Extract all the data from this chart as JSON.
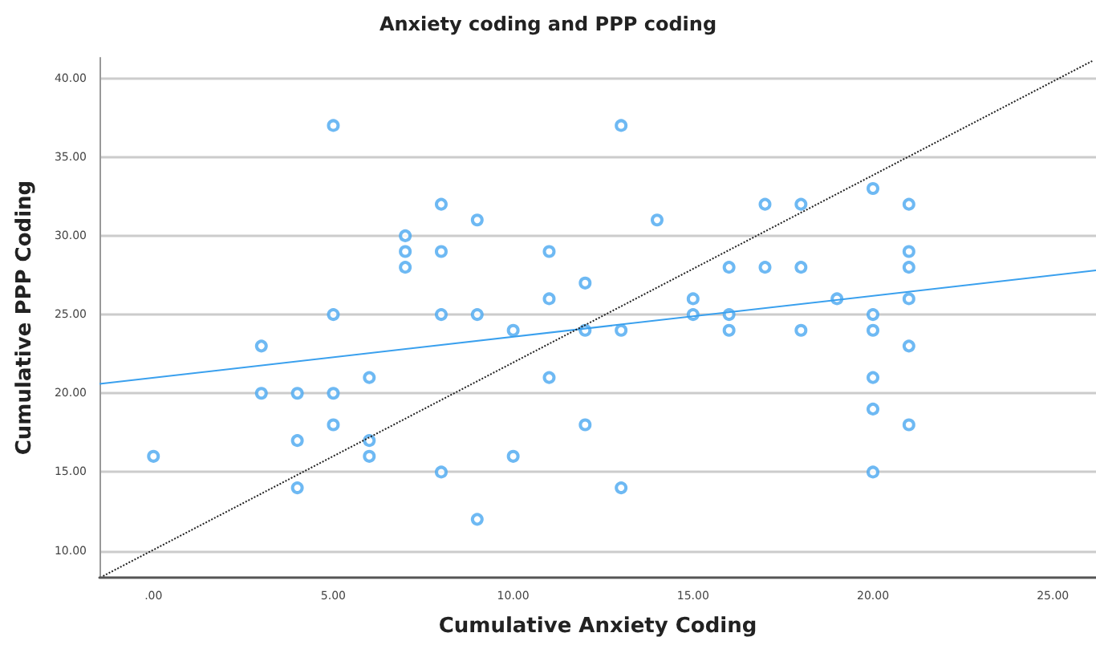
{
  "chart_data": {
    "type": "scatter",
    "title": "Anxiety coding and PPP coding",
    "xlabel": "Cumulative Anxiety Coding",
    "ylabel": "Cumulative PPP Coding",
    "xlim": [
      -1.5,
      26.2
    ],
    "ylim": [
      8.3,
      41.3
    ],
    "xticks": [
      {
        "value": 0,
        "label": ".00"
      },
      {
        "value": 5,
        "label": "5.00"
      },
      {
        "value": 10,
        "label": "10.00"
      },
      {
        "value": 15,
        "label": "15.00"
      },
      {
        "value": 20,
        "label": "20.00"
      },
      {
        "value": 25,
        "label": "25.00"
      }
    ],
    "yticks": [
      {
        "value": 10,
        "label": "10.00"
      },
      {
        "value": 15,
        "label": "15.00"
      },
      {
        "value": 20,
        "label": "20.00"
      },
      {
        "value": 25,
        "label": "25.00"
      },
      {
        "value": 30,
        "label": "30.00"
      },
      {
        "value": 35,
        "label": "35.00"
      },
      {
        "value": 40,
        "label": "40.00"
      }
    ],
    "grid": "y",
    "marker": "circle",
    "series": [
      {
        "color": "#4aa8f0",
        "x": [
          0,
          3,
          3,
          4,
          4,
          4,
          5,
          5,
          5,
          5,
          6,
          6,
          6,
          7,
          7,
          7,
          8,
          8,
          8,
          8,
          9,
          9,
          9,
          10,
          10,
          11,
          11,
          11,
          12,
          12,
          12,
          13,
          13,
          13,
          14,
          15,
          15,
          16,
          16,
          16,
          17,
          17,
          18,
          18,
          18,
          19,
          20,
          20,
          20,
          20,
          20,
          20,
          21,
          21,
          21,
          21,
          21,
          21
        ],
        "values": [
          16,
          23,
          20,
          20,
          17,
          14,
          37,
          25,
          20,
          18,
          21,
          17,
          16,
          30,
          29,
          28,
          32,
          29,
          25,
          15,
          31,
          25,
          12,
          24,
          16,
          29,
          26,
          21,
          27,
          24,
          18,
          37,
          24,
          14,
          31,
          26,
          25,
          28,
          25,
          24,
          32,
          28,
          32,
          28,
          24,
          26,
          33,
          25,
          24,
          21,
          19,
          15,
          32,
          29,
          28,
          26,
          23,
          18
        ]
      },
      {
        "type": "line",
        "color": "#3aa0ee",
        "x": [
          -1.5,
          26.2
        ],
        "values": [
          20.6,
          27.8
        ],
        "marker": "none"
      },
      {
        "type": "line",
        "color": "#222222",
        "x": [
          -1.4,
          26.1
        ],
        "values": [
          8.4,
          41.1
        ],
        "marker": "none",
        "line_style": "dotted"
      }
    ]
  }
}
